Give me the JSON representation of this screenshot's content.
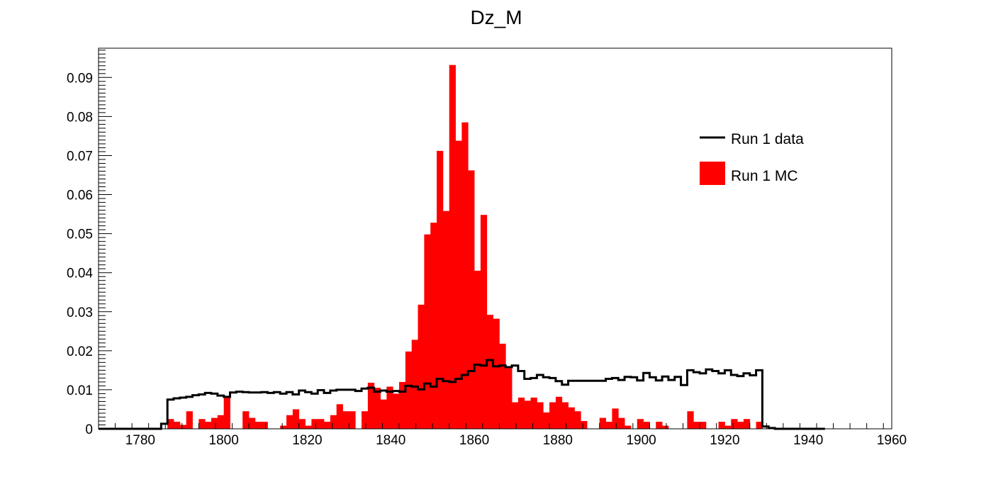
{
  "chart_data": {
    "type": "bar",
    "title": "Dz_M",
    "xlabel": "",
    "ylabel": "",
    "xlim": [
      1770,
      1960
    ],
    "ylim": [
      0,
      0.0975
    ],
    "bin_start": 1770,
    "bin_width": 1.5,
    "x_ticks": [
      "1780",
      "1800",
      "1820",
      "1840",
      "1860",
      "1880",
      "1900",
      "1920",
      "1940",
      "1960"
    ],
    "y_ticks": [
      "0",
      "0.01",
      "0.02",
      "0.03",
      "0.04",
      "0.05",
      "0.06",
      "0.07",
      "0.08",
      "0.09"
    ],
    "legend": {
      "position": "top-right"
    },
    "series": [
      {
        "name": "Run 1 data",
        "style": "step",
        "color": "#000000",
        "values": [
          0,
          0,
          0,
          0,
          0,
          0,
          0,
          0,
          0,
          0,
          0.0013,
          0.0075,
          0.0078,
          0.008,
          0.0082,
          0.0086,
          0.0088,
          0.0092,
          0.009,
          0.0085,
          0.0082,
          0.0093,
          0.0095,
          0.0094,
          0.0093,
          0.0093,
          0.0094,
          0.0092,
          0.0094,
          0.009,
          0.0094,
          0.0088,
          0.0098,
          0.0094,
          0.009,
          0.0099,
          0.0092,
          0.0098,
          0.01,
          0.01,
          0.01,
          0.0097,
          0.0103,
          0.0105,
          0.0095,
          0.0098,
          0.0095,
          0.0097,
          0.0095,
          0.011,
          0.0108,
          0.0101,
          0.0116,
          0.0108,
          0.0128,
          0.0122,
          0.012,
          0.0128,
          0.0138,
          0.0148,
          0.0164,
          0.0162,
          0.0176,
          0.016,
          0.0162,
          0.0158,
          0.0162,
          0.0148,
          0.0128,
          0.013,
          0.0138,
          0.0132,
          0.013,
          0.0122,
          0.0113,
          0.0123,
          0.0123,
          0.0123,
          0.0123,
          0.0123,
          0.0123,
          0.0128,
          0.013,
          0.0125,
          0.0133,
          0.0132,
          0.0124,
          0.0143,
          0.0132,
          0.0124,
          0.0134,
          0.0125,
          0.0133,
          0.0112,
          0.015,
          0.0145,
          0.0142,
          0.0152,
          0.0148,
          0.0142,
          0.015,
          0.0138,
          0.0135,
          0.0142,
          0.0137,
          0.015,
          0.0006,
          0.0002,
          0,
          0,
          0,
          0,
          0,
          0,
          0,
          0
        ]
      },
      {
        "name": "Run 1 MC",
        "style": "filled",
        "color": "#ff0000",
        "values": [
          0,
          0,
          0,
          0,
          0,
          0,
          0,
          0,
          0,
          0,
          0,
          0.0025,
          0.0018,
          0.001,
          0.0045,
          0,
          0.0025,
          0.0018,
          0.0028,
          0.0035,
          0.008,
          0,
          0,
          0.0045,
          0.0028,
          0.0018,
          0.0018,
          0,
          0,
          0.0008,
          0.0035,
          0.005,
          0.0025,
          0.0008,
          0.0025,
          0.0025,
          0.0018,
          0.0035,
          0.0063,
          0.0045,
          0.0045,
          0,
          0.0045,
          0.0118,
          0.0105,
          0.0075,
          0.0108,
          0.009,
          0.012,
          0.0198,
          0.0228,
          0.0318,
          0.0498,
          0.0528,
          0.0712,
          0.0558,
          0.0932,
          0.0738,
          0.0785,
          0.0662,
          0.0405,
          0.0548,
          0.0292,
          0.0282,
          0.0218,
          0.0155,
          0.0068,
          0.008,
          0.0072,
          0.008,
          0.0068,
          0.0042,
          0.0068,
          0.0082,
          0.0068,
          0.0055,
          0.0045,
          0.002,
          0,
          0,
          0.0028,
          0.0018,
          0.0052,
          0.0028,
          0.0008,
          0,
          0.0025,
          0.0018,
          0,
          0.0018,
          0.0008,
          0,
          0,
          0,
          0.0045,
          0.0018,
          0.0018,
          0,
          0,
          0.0018,
          0.0008,
          0.0025,
          0.0018,
          0.0025,
          0,
          0.0018,
          0,
          0,
          0,
          0,
          0,
          0,
          0,
          0,
          0,
          0
        ]
      }
    ]
  }
}
